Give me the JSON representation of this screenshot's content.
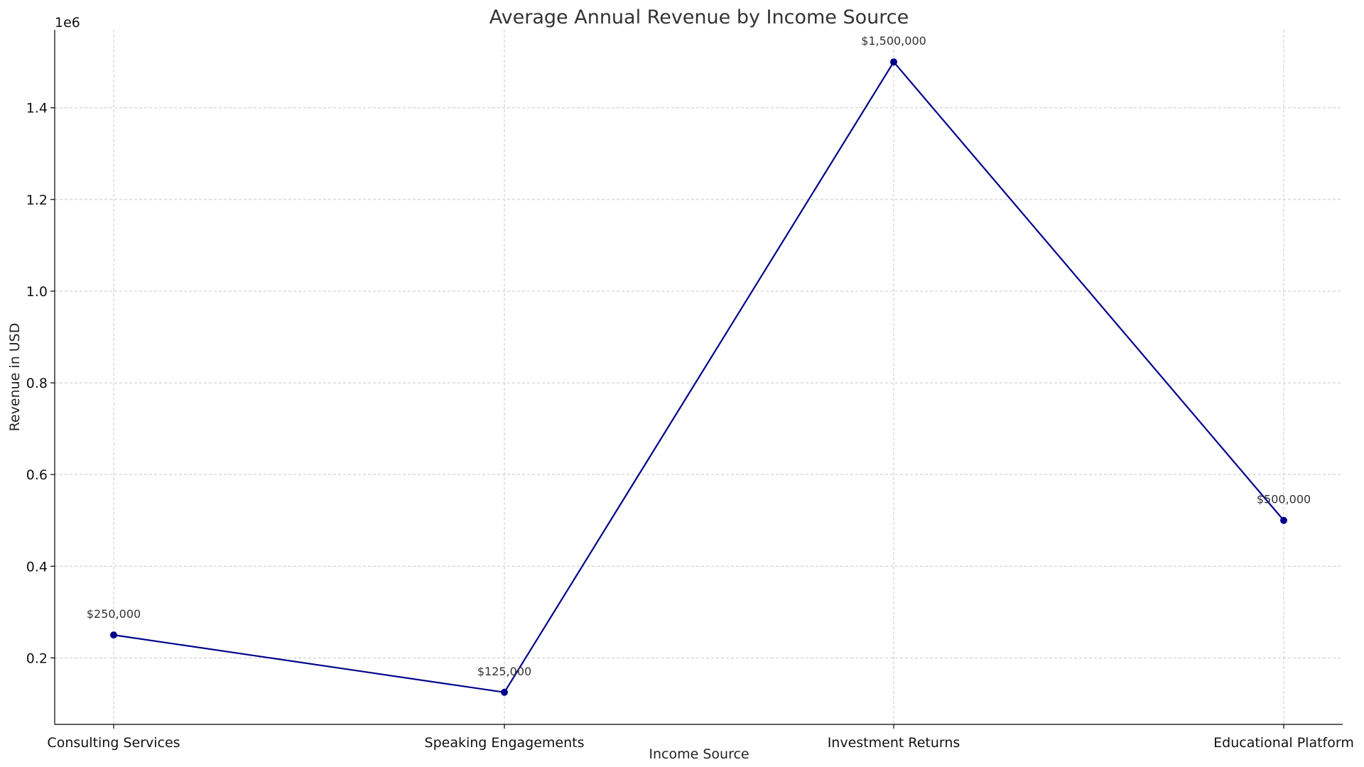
{
  "chart_data": {
    "type": "line",
    "title": "Average Annual Revenue by Income Source",
    "xlabel": "Income Source",
    "ylabel": "Revenue in USD",
    "y_offset_label": "1e6",
    "categories": [
      "Consulting Services",
      "Speaking Engagements",
      "Investment Returns",
      "Educational Platform"
    ],
    "values": [
      250000,
      125000,
      1500000,
      500000
    ],
    "data_labels": [
      "$250,000",
      "$125,000",
      "$1,500,000",
      "$500,000"
    ],
    "ylim": [
      55000,
      1570000
    ],
    "y_ticks": [
      200000,
      400000,
      600000,
      800000,
      1000000,
      1200000,
      1400000
    ],
    "y_tick_labels": [
      "0.2",
      "0.4",
      "0.6",
      "0.8",
      "1.0",
      "1.2",
      "1.4"
    ],
    "grid": true,
    "line_color": "#00008b"
  }
}
